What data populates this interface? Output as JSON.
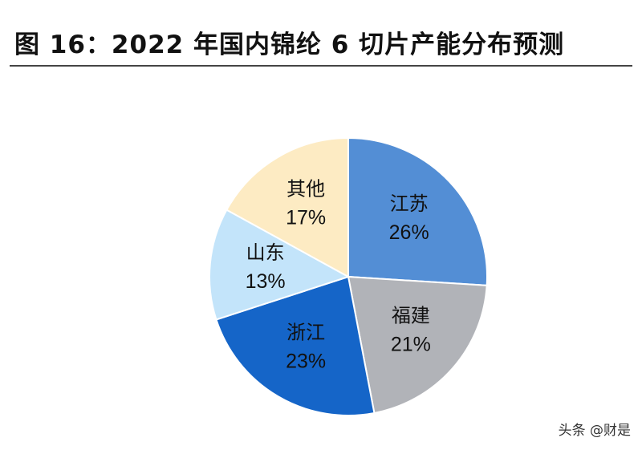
{
  "chart_data": {
    "type": "pie",
    "title": "图 16：2022 年国内锦纶 6 切片产能分布预测",
    "slices": [
      {
        "label": "江苏",
        "value_label": "26%",
        "value": 26,
        "color": "#538ED5"
      },
      {
        "label": "福建",
        "value_label": "21%",
        "value": 21,
        "color": "#B1B3B8"
      },
      {
        "label": "浙江",
        "value_label": "23%",
        "value": 23,
        "color": "#1565C8"
      },
      {
        "label": "山东",
        "value_label": "13%",
        "value": 13,
        "color": "#C3E4FA"
      },
      {
        "label": "其他",
        "value_label": "17%",
        "value": 17,
        "color": "#FDEBC3"
      }
    ]
  },
  "watermark": "头条 @财是"
}
